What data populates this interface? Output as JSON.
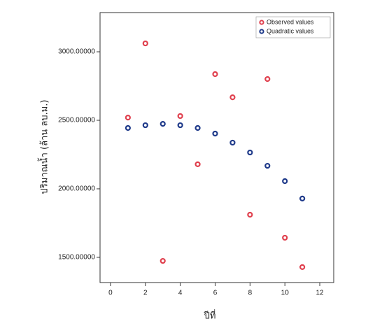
{
  "chart_data": {
    "type": "scatter",
    "xlabel": "ปีที่",
    "ylabel": "ปริมาณน้ำ (ล้าน ลบ.ม.)",
    "xlim": [
      -0.6,
      12.8
    ],
    "ylim": [
      1316,
      3286
    ],
    "xticks": [
      0,
      2,
      4,
      6,
      8,
      10,
      12
    ],
    "yticks": [
      {
        "value": 1500,
        "label": "1500.00000"
      },
      {
        "value": 2000,
        "label": "2000.00000"
      },
      {
        "value": 2500,
        "label": "2500.00000"
      },
      {
        "value": 3000,
        "label": "3000.00000"
      }
    ],
    "legend": "upper right",
    "series": [
      {
        "name": "Observed values",
        "color": "#e0404e",
        "x": [
          1,
          2,
          3,
          4,
          5,
          6,
          7,
          8,
          9,
          10,
          11
        ],
        "values": [
          2520,
          3061,
          1474,
          2531,
          2179,
          2837,
          2668,
          1811,
          2801,
          1643,
          1429
        ]
      },
      {
        "name": "Quadratic values",
        "color": "#1f3a8a",
        "x": [
          1,
          2,
          3,
          4,
          5,
          6,
          7,
          8,
          9,
          10,
          11
        ],
        "values": [
          2444,
          2464,
          2474,
          2464,
          2444,
          2403,
          2337,
          2265,
          2168,
          2056,
          1929
        ]
      }
    ]
  }
}
